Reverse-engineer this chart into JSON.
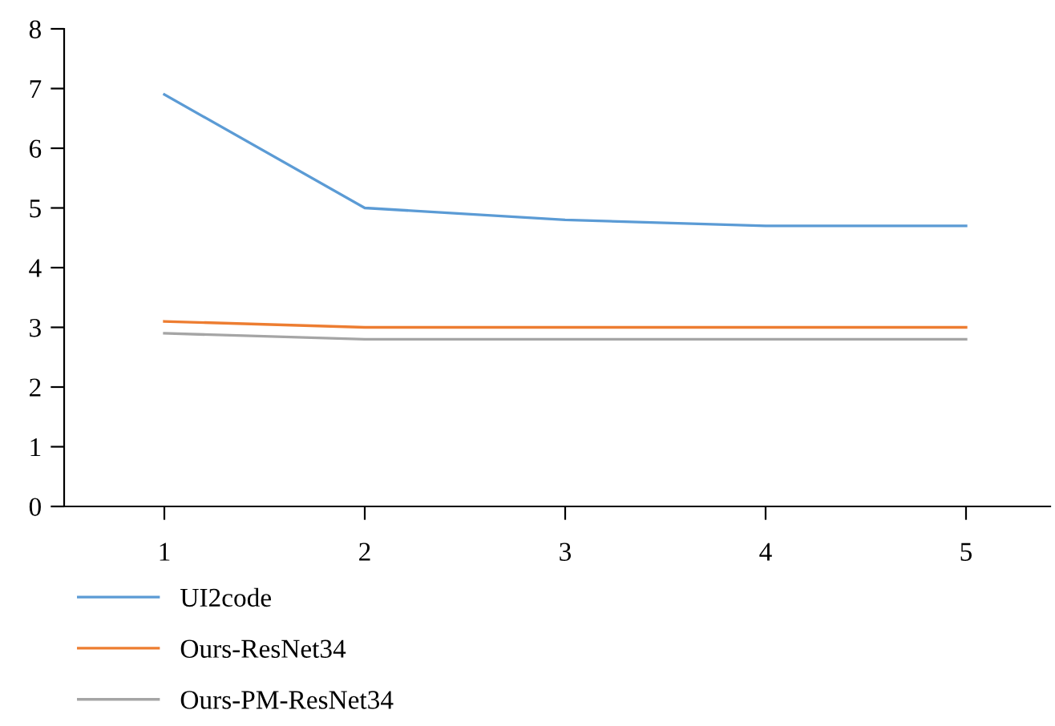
{
  "chart_data": {
    "type": "line",
    "x": [
      1,
      2,
      3,
      4,
      5
    ],
    "series": [
      {
        "name": "UI2code",
        "color": "#5b9bd5",
        "values": [
          6.9,
          5.0,
          4.8,
          4.7,
          4.7
        ]
      },
      {
        "name": "Ours-ResNet34",
        "color": "#ed7d31",
        "values": [
          3.1,
          3.0,
          3.0,
          3.0,
          3.0
        ]
      },
      {
        "name": "Ours-PM-ResNet34",
        "color": "#a5a5a5",
        "values": [
          2.9,
          2.8,
          2.8,
          2.8,
          2.8
        ]
      }
    ],
    "xlim": [
      0.5,
      5.42
    ],
    "xticks": [
      1,
      2,
      3,
      4,
      5
    ],
    "ylim": [
      0,
      8
    ],
    "yticks": [
      0,
      1,
      2,
      3,
      4,
      5,
      6,
      7,
      8
    ],
    "grid": false,
    "legend": "bottom left",
    "marker": "none",
    "line_style": "solid"
  }
}
